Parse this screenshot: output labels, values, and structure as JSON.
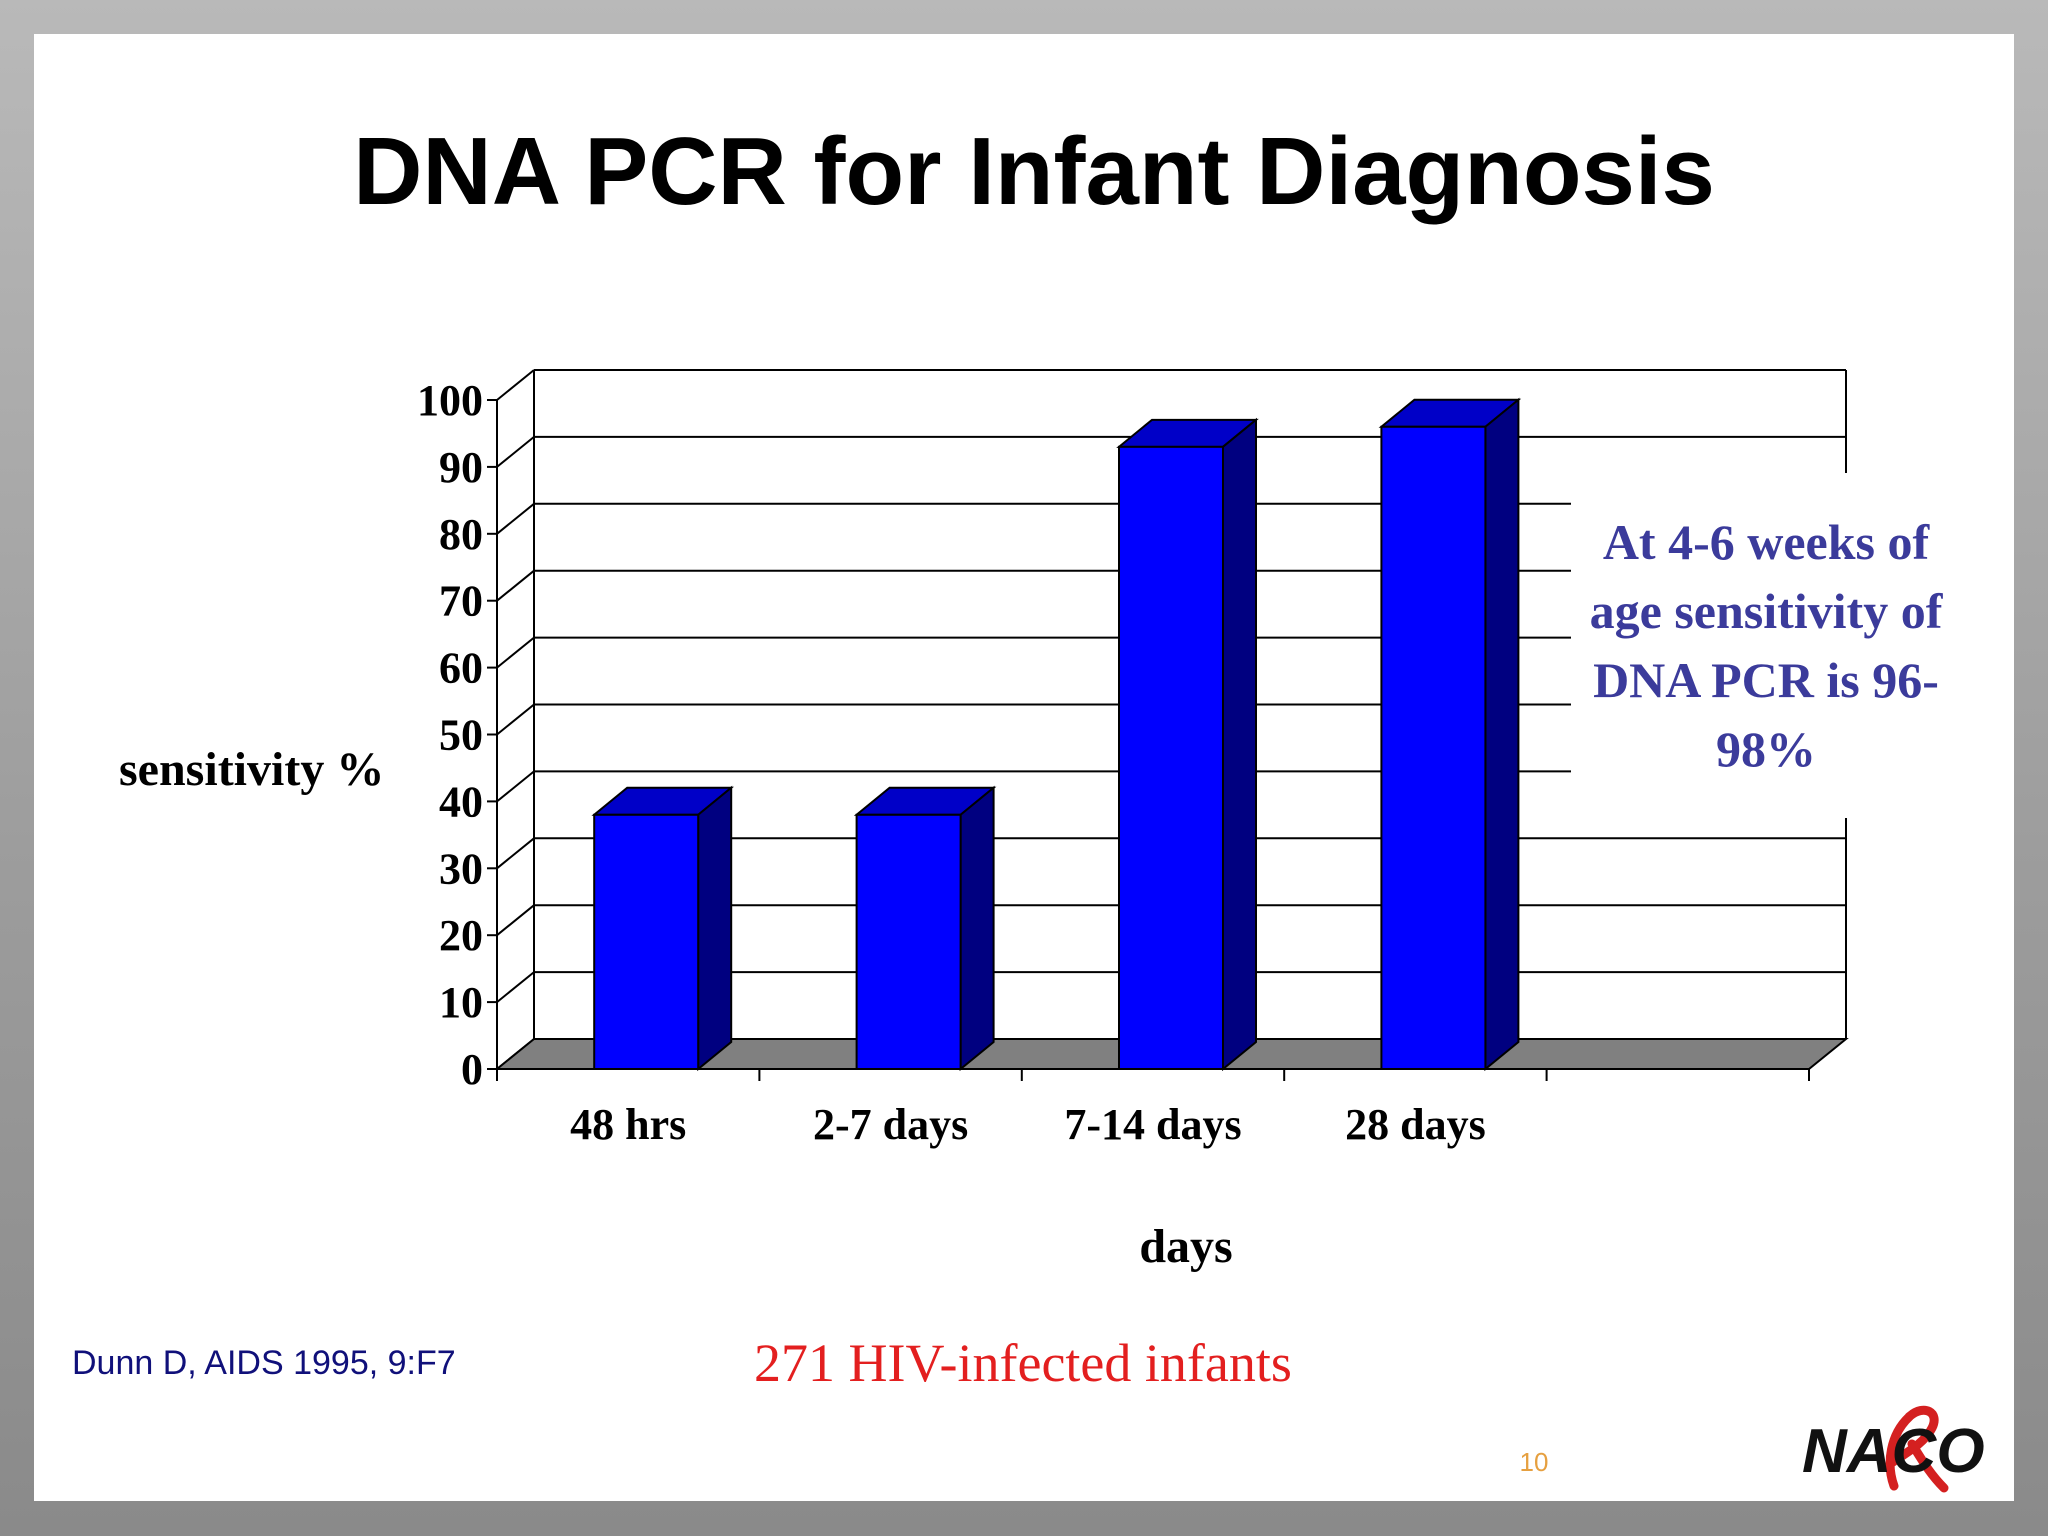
{
  "slide": {
    "title": "DNA PCR for Infant Diagnosis",
    "annotation": "At 4-6 weeks of age sensitivity of DNA PCR is 96-98%",
    "citation": "Dunn D, AIDS 1995, 9:F7",
    "footnote": "271 HIV-infected infants",
    "page_number": "10",
    "logo_text": "NACO"
  },
  "colors": {
    "bar_front": "#0000ff",
    "bar_side": "#000080",
    "bar_top": "#0000c8",
    "floor": "#808080",
    "annotation_text": "#3b3b9b",
    "footnote_text": "#e31f1f",
    "citation_text": "#10107a",
    "page_number_text": "#e6a040",
    "logo_ribbon": "#d42020"
  },
  "chart_data": {
    "type": "bar",
    "categories": [
      "48 hrs",
      "2-7 days",
      "7-14 days",
      "28 days"
    ],
    "values": [
      38,
      38,
      93,
      96
    ],
    "xlabel": "days",
    "ylabel": "sensitivity %",
    "ylim": [
      0,
      100
    ],
    "yticks": [
      "0",
      "10",
      "20",
      "30",
      "40",
      "50",
      "60",
      "70",
      "80",
      "90",
      "100"
    ],
    "grid": true,
    "style": "3d"
  }
}
